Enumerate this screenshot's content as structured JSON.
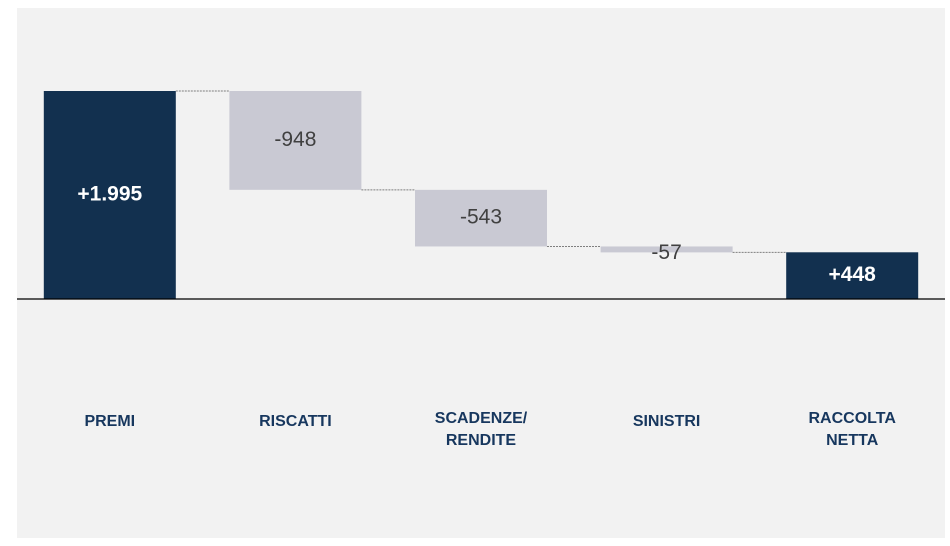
{
  "chart_data": {
    "type": "waterfall",
    "categories": [
      "PREMI",
      "RISCATTI",
      "SCADENZE/\nRENDITE",
      "SINISTRI",
      "RACCOLTA\nNETTA"
    ],
    "values": [
      1995,
      -948,
      -543,
      -57,
      448
    ],
    "value_labels": [
      "+1.995",
      "-948",
      "-543",
      "-57",
      "+448"
    ],
    "measure": [
      "absolute",
      "relative",
      "relative",
      "relative",
      "total"
    ],
    "colors": [
      "#12304f",
      "#c9c9d3",
      "#c9c9d3",
      "#c9c9d3",
      "#12304f"
    ],
    "connectors": true
  }
}
